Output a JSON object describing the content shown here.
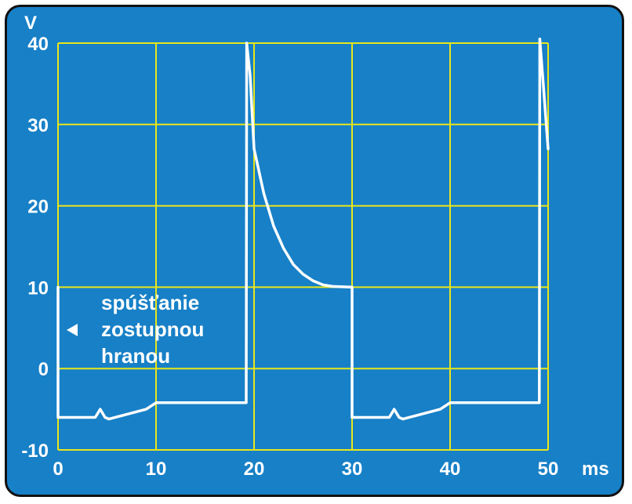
{
  "chart_data": {
    "type": "line",
    "title": "",
    "xlabel": "ms",
    "ylabel": "V",
    "xlim": [
      0,
      50
    ],
    "ylim": [
      -10,
      40
    ],
    "x_ticks": [
      "0",
      "10",
      "20",
      "30",
      "40",
      "50"
    ],
    "y_ticks": [
      "-10",
      "0",
      "10",
      "20",
      "30",
      "40"
    ],
    "grid": true,
    "colors": {
      "background": "#1780c7",
      "grid": "#e9e61a",
      "trace": "#ffffff"
    },
    "series": [
      {
        "points": [
          [
            0,
            10
          ],
          [
            0,
            -6
          ],
          [
            3.8,
            -6
          ],
          [
            4.3,
            -5
          ],
          [
            4.8,
            -6
          ],
          [
            5.2,
            -6.2
          ],
          [
            9.0,
            -5
          ],
          [
            10,
            -4.2
          ],
          [
            19.2,
            -4.2
          ],
          [
            19.25,
            40
          ],
          [
            19.6,
            36
          ],
          [
            20,
            27
          ],
          [
            21,
            21.5
          ],
          [
            22,
            17.5
          ],
          [
            23,
            14.8
          ],
          [
            24,
            12.8
          ],
          [
            25,
            11.6
          ],
          [
            26,
            10.8
          ],
          [
            27,
            10.3
          ],
          [
            28,
            10.1
          ],
          [
            30,
            10
          ],
          [
            30,
            -6
          ],
          [
            33.8,
            -6
          ],
          [
            34.3,
            -5
          ],
          [
            34.8,
            -6
          ],
          [
            35.2,
            -6.2
          ],
          [
            39.0,
            -5
          ],
          [
            40,
            -4.2
          ],
          [
            49.1,
            -4.2
          ],
          [
            49.15,
            40.5
          ],
          [
            49.5,
            35
          ],
          [
            50,
            27
          ]
        ]
      }
    ],
    "annotation": {
      "lines": [
        "spúšťanie",
        "zostupnou",
        "hranou"
      ],
      "arrow": "left-pointing-triangle"
    }
  }
}
